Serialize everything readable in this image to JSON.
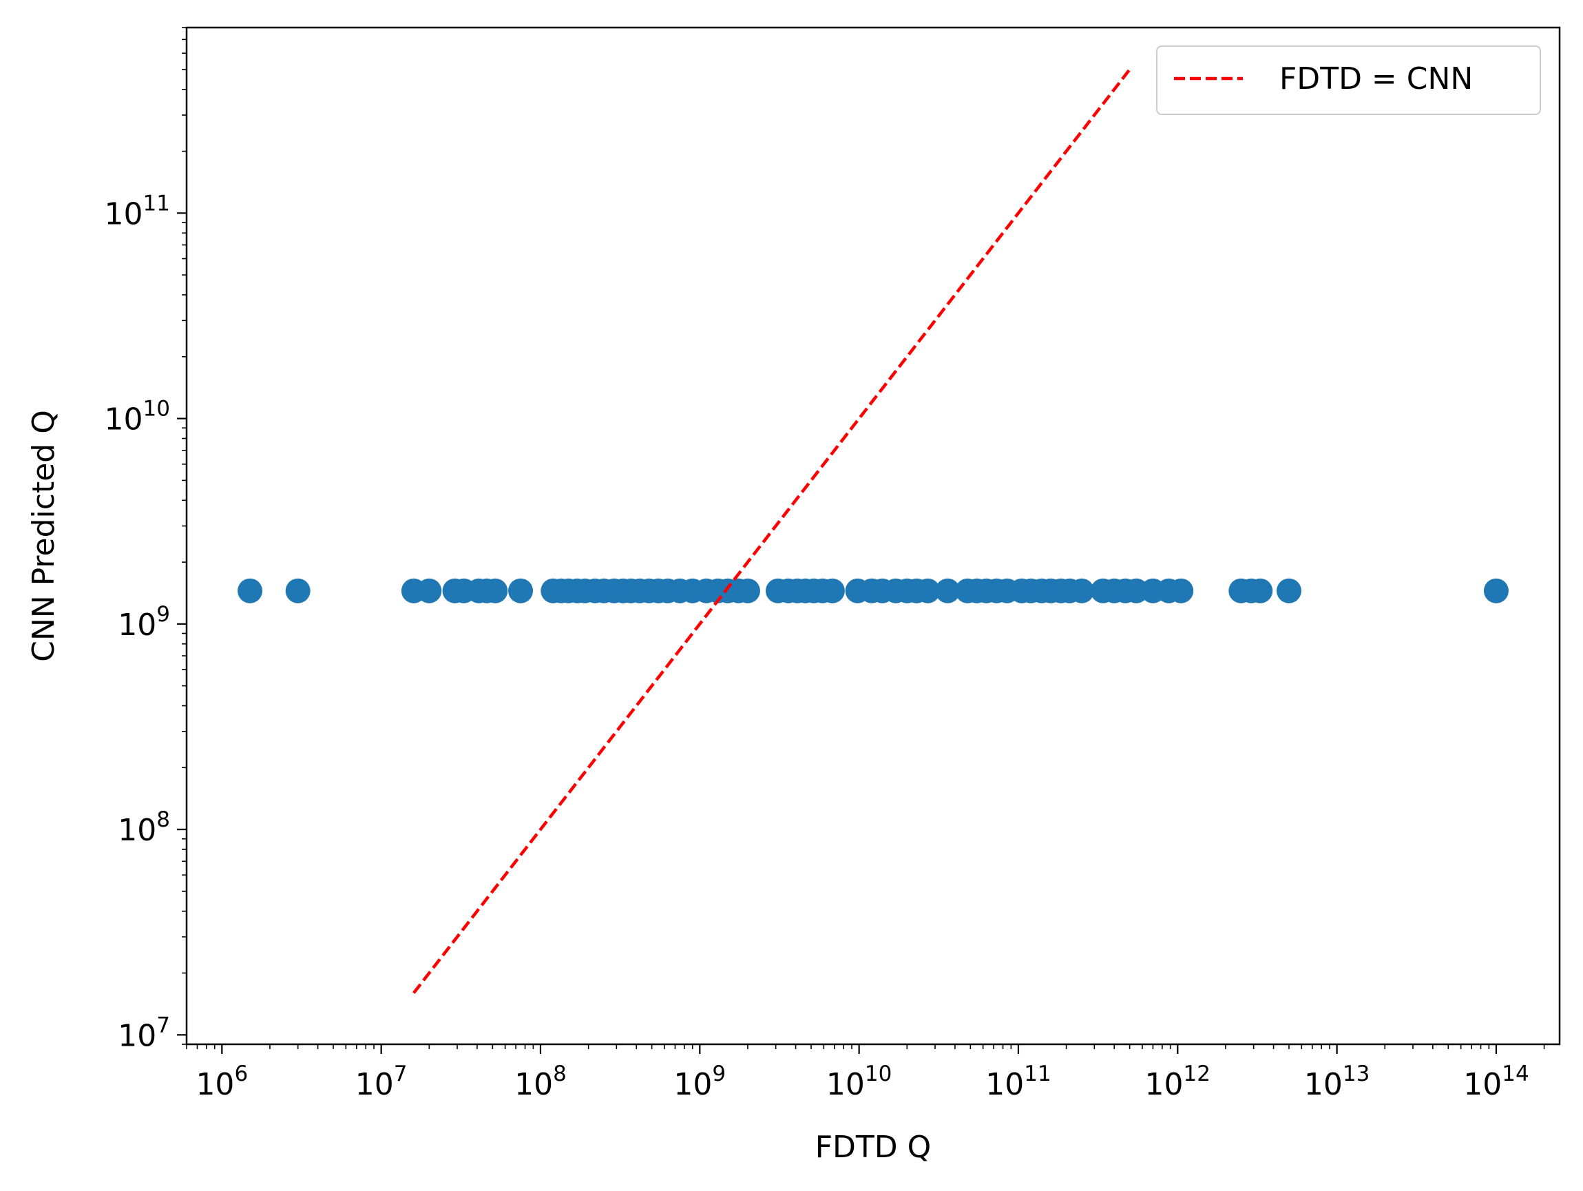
{
  "chart_data": {
    "type": "scatter",
    "title": "",
    "xlabel": "FDTD Q",
    "ylabel": "CNN Predicted Q",
    "xscale": "log",
    "yscale": "log",
    "xlim": [
      600000,
      250000000000000
    ],
    "ylim": [
      9000000,
      800000000000
    ],
    "x_major_ticks": [
      {
        "value": 1000000.0,
        "base": "10",
        "exp": "6"
      },
      {
        "value": 10000000.0,
        "base": "10",
        "exp": "7"
      },
      {
        "value": 100000000.0,
        "base": "10",
        "exp": "8"
      },
      {
        "value": 1000000000.0,
        "base": "10",
        "exp": "9"
      },
      {
        "value": 10000000000.0,
        "base": "10",
        "exp": "10"
      },
      {
        "value": 100000000000.0,
        "base": "10",
        "exp": "11"
      },
      {
        "value": 1000000000000.0,
        "base": "10",
        "exp": "12"
      },
      {
        "value": 10000000000000.0,
        "base": "10",
        "exp": "13"
      },
      {
        "value": 100000000000000.0,
        "base": "10",
        "exp": "14"
      }
    ],
    "y_major_ticks": [
      {
        "value": 10000000.0,
        "base": "10",
        "exp": "7"
      },
      {
        "value": 100000000.0,
        "base": "10",
        "exp": "8"
      },
      {
        "value": 1000000000.0,
        "base": "10",
        "exp": "9"
      },
      {
        "value": 10000000000.0,
        "base": "10",
        "exp": "10"
      },
      {
        "value": 100000000000.0,
        "base": "10",
        "exp": "11"
      }
    ],
    "grid": false,
    "legend": {
      "placement": "top-right",
      "entries": [
        {
          "label": "FDTD = CNN",
          "style": "dashed-line",
          "color": "#ff0000"
        }
      ]
    },
    "series": [
      {
        "type": "scatter",
        "color": "#1f77b4",
        "points": [
          {
            "x": 1500000.0,
            "y": 1450000000.0
          },
          {
            "x": 3000000.0,
            "y": 1450000000.0
          },
          {
            "x": 16000000.0,
            "y": 1450000000.0
          },
          {
            "x": 20000000.0,
            "y": 1450000000.0
          },
          {
            "x": 29000000.0,
            "y": 1450000000.0
          },
          {
            "x": 33000000.0,
            "y": 1450000000.0
          },
          {
            "x": 41000000.0,
            "y": 1450000000.0
          },
          {
            "x": 46000000.0,
            "y": 1450000000.0
          },
          {
            "x": 52000000.0,
            "y": 1450000000.0
          },
          {
            "x": 75000000.0,
            "y": 1450000000.0
          },
          {
            "x": 120000000.0,
            "y": 1450000000.0
          },
          {
            "x": 135000000.0,
            "y": 1450000000.0
          },
          {
            "x": 150000000.0,
            "y": 1450000000.0
          },
          {
            "x": 170000000.0,
            "y": 1450000000.0
          },
          {
            "x": 190000000.0,
            "y": 1450000000.0
          },
          {
            "x": 220000000.0,
            "y": 1450000000.0
          },
          {
            "x": 250000000.0,
            "y": 1450000000.0
          },
          {
            "x": 290000000.0,
            "y": 1450000000.0
          },
          {
            "x": 330000000.0,
            "y": 1450000000.0
          },
          {
            "x": 370000000.0,
            "y": 1450000000.0
          },
          {
            "x": 420000000.0,
            "y": 1450000000.0
          },
          {
            "x": 480000000.0,
            "y": 1450000000.0
          },
          {
            "x": 550000000.0,
            "y": 1450000000.0
          },
          {
            "x": 630000000.0,
            "y": 1450000000.0
          },
          {
            "x": 750000000.0,
            "y": 1450000000.0
          },
          {
            "x": 900000000.0,
            "y": 1450000000.0
          },
          {
            "x": 1100000000.0,
            "y": 1450000000.0
          },
          {
            "x": 1300000000.0,
            "y": 1450000000.0
          },
          {
            "x": 1500000000.0,
            "y": 1450000000.0
          },
          {
            "x": 1750000000.0,
            "y": 1450000000.0
          },
          {
            "x": 2000000000.0,
            "y": 1450000000.0
          },
          {
            "x": 3100000000.0,
            "y": 1450000000.0
          },
          {
            "x": 3600000000.0,
            "y": 1450000000.0
          },
          {
            "x": 4100000000.0,
            "y": 1450000000.0
          },
          {
            "x": 4600000000.0,
            "y": 1450000000.0
          },
          {
            "x": 5200000000.0,
            "y": 1450000000.0
          },
          {
            "x": 5900000000.0,
            "y": 1450000000.0
          },
          {
            "x": 6800000000.0,
            "y": 1450000000.0
          },
          {
            "x": 9800000000.0,
            "y": 1450000000.0
          },
          {
            "x": 12000000000.0,
            "y": 1450000000.0
          },
          {
            "x": 14000000000.0,
            "y": 1450000000.0
          },
          {
            "x": 17000000000.0,
            "y": 1450000000.0
          },
          {
            "x": 20000000000.0,
            "y": 1450000000.0
          },
          {
            "x": 23000000000.0,
            "y": 1450000000.0
          },
          {
            "x": 27000000000.0,
            "y": 1450000000.0
          },
          {
            "x": 36000000000.0,
            "y": 1450000000.0
          },
          {
            "x": 48000000000.0,
            "y": 1450000000.0
          },
          {
            "x": 55000000000.0,
            "y": 1450000000.0
          },
          {
            "x": 63000000000.0,
            "y": 1450000000.0
          },
          {
            "x": 73000000000.0,
            "y": 1450000000.0
          },
          {
            "x": 85000000000.0,
            "y": 1450000000.0
          },
          {
            "x": 105000000000.0,
            "y": 1450000000.0
          },
          {
            "x": 120000000000.0,
            "y": 1450000000.0
          },
          {
            "x": 140000000000.0,
            "y": 1450000000.0
          },
          {
            "x": 160000000000.0,
            "y": 1450000000.0
          },
          {
            "x": 185000000000.0,
            "y": 1450000000.0
          },
          {
            "x": 210000000000.0,
            "y": 1450000000.0
          },
          {
            "x": 250000000000.0,
            "y": 1450000000.0
          },
          {
            "x": 340000000000.0,
            "y": 1450000000.0
          },
          {
            "x": 400000000000.0,
            "y": 1450000000.0
          },
          {
            "x": 470000000000.0,
            "y": 1450000000.0
          },
          {
            "x": 550000000000.0,
            "y": 1450000000.0
          },
          {
            "x": 700000000000.0,
            "y": 1450000000.0
          },
          {
            "x": 880000000000.0,
            "y": 1450000000.0
          },
          {
            "x": 1050000000000.0,
            "y": 1450000000.0
          },
          {
            "x": 2500000000000.0,
            "y": 1450000000.0
          },
          {
            "x": 2900000000000.0,
            "y": 1450000000.0
          },
          {
            "x": 3300000000000.0,
            "y": 1450000000.0
          },
          {
            "x": 5000000000000.0,
            "y": 1450000000.0
          },
          {
            "x": 100000000000000.0,
            "y": 1450000000.0
          }
        ]
      },
      {
        "name": "FDTD = CNN",
        "type": "line",
        "style": "dashed",
        "color": "#ff0000",
        "x": [
          16000000.0,
          500000000000.0
        ],
        "y": [
          16000000.0,
          500000000000.0
        ]
      }
    ]
  }
}
